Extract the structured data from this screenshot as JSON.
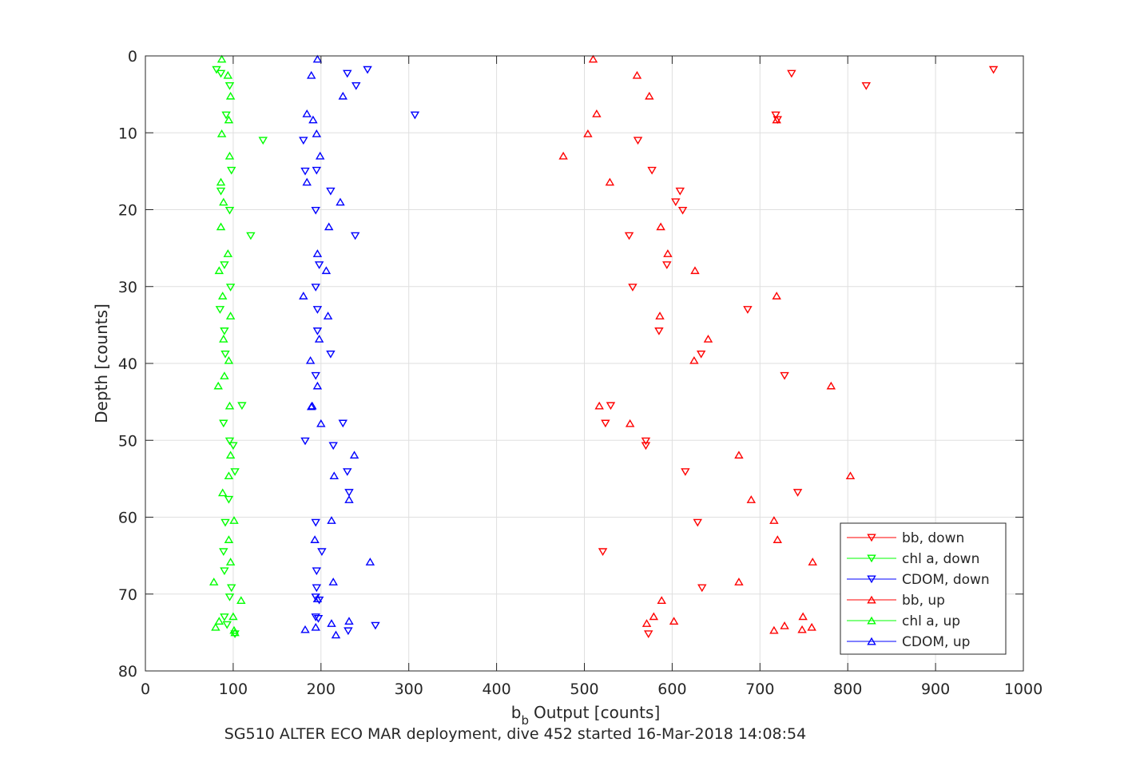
{
  "chart_data": {
    "type": "scatter",
    "title": "",
    "xlabel": "Output [counts]",
    "xlabel_prefix": "b",
    "xlabel_subscript": "b",
    "ylabel": "Depth [counts]",
    "caption": "SG510 ALTER ECO MAR deployment, dive 452 started 16-Mar-2018 14:08:54",
    "xlim": [
      0,
      1000
    ],
    "ylim": [
      0,
      80
    ],
    "y_reversed": true,
    "xticks": [
      0,
      100,
      200,
      300,
      400,
      500,
      600,
      700,
      800,
      900,
      1000
    ],
    "yticks": [
      0,
      10,
      20,
      30,
      40,
      50,
      60,
      70,
      80
    ],
    "grid": true,
    "legend_position": "bottom-right",
    "series": [
      {
        "name": "bb, down",
        "color": "#ff0000",
        "marker": "triangle-down",
        "points": [
          [
            966,
            1.8
          ],
          [
            736,
            2.3
          ],
          [
            821,
            3.9
          ],
          [
            718,
            7.7
          ],
          [
            720,
            8.3
          ],
          [
            561,
            11.0
          ],
          [
            577,
            14.9
          ],
          [
            609,
            17.6
          ],
          [
            604,
            19.0
          ],
          [
            612,
            20.1
          ],
          [
            551,
            23.4
          ],
          [
            594,
            27.2
          ],
          [
            555,
            30.1
          ],
          [
            686,
            33.0
          ],
          [
            585,
            35.8
          ],
          [
            633,
            38.8
          ],
          [
            728,
            41.6
          ],
          [
            530,
            45.5
          ],
          [
            524,
            47.8
          ],
          [
            570,
            50.1
          ],
          [
            570,
            50.7
          ],
          [
            615,
            54.1
          ],
          [
            743,
            56.8
          ],
          [
            629,
            60.7
          ],
          [
            521,
            64.5
          ],
          [
            634,
            69.2
          ],
          [
            573,
            75.2
          ]
        ]
      },
      {
        "name": "chl a, down",
        "color": "#00ff00",
        "marker": "triangle-down",
        "points": [
          [
            81,
            1.8
          ],
          [
            86,
            2.3
          ],
          [
            96,
            3.9
          ],
          [
            92,
            7.7
          ],
          [
            134,
            11.0
          ],
          [
            98,
            14.9
          ],
          [
            86,
            17.6
          ],
          [
            96,
            20.1
          ],
          [
            120,
            23.4
          ],
          [
            90,
            27.2
          ],
          [
            97,
            30.1
          ],
          [
            85,
            33.0
          ],
          [
            90,
            35.8
          ],
          [
            91,
            38.8
          ],
          [
            110,
            45.5
          ],
          [
            89,
            47.8
          ],
          [
            96,
            50.1
          ],
          [
            100,
            50.7
          ],
          [
            102,
            54.1
          ],
          [
            95,
            57.7
          ],
          [
            91,
            60.7
          ],
          [
            89,
            64.5
          ],
          [
            90,
            67.0
          ],
          [
            98,
            69.2
          ],
          [
            96,
            70.4
          ],
          [
            90,
            73.0
          ],
          [
            93,
            74.0
          ],
          [
            102,
            75.2
          ]
        ]
      },
      {
        "name": "CDOM, down",
        "color": "#0000ff",
        "marker": "triangle-down",
        "points": [
          [
            253,
            1.8
          ],
          [
            230,
            2.3
          ],
          [
            240,
            3.9
          ],
          [
            307,
            7.7
          ],
          [
            180,
            11.0
          ],
          [
            195,
            14.9
          ],
          [
            182,
            15.0
          ],
          [
            211,
            17.6
          ],
          [
            194,
            20.1
          ],
          [
            239,
            23.4
          ],
          [
            198,
            27.2
          ],
          [
            194,
            30.1
          ],
          [
            196,
            33.0
          ],
          [
            196,
            35.8
          ],
          [
            211,
            38.8
          ],
          [
            194,
            41.6
          ],
          [
            225,
            47.8
          ],
          [
            182,
            50.1
          ],
          [
            214,
            50.7
          ],
          [
            230,
            54.1
          ],
          [
            232,
            56.8
          ],
          [
            194,
            60.7
          ],
          [
            201,
            64.5
          ],
          [
            195,
            67.0
          ],
          [
            195,
            69.2
          ],
          [
            194,
            70.4
          ],
          [
            198,
            70.8
          ],
          [
            194,
            73.0
          ],
          [
            197,
            73.2
          ],
          [
            262,
            74.1
          ],
          [
            231,
            74.8
          ]
        ]
      },
      {
        "name": "bb, up",
        "color": "#ff0000",
        "marker": "triangle-up",
        "points": [
          [
            510,
            0.4
          ],
          [
            560,
            2.5
          ],
          [
            574,
            5.2
          ],
          [
            514,
            7.5
          ],
          [
            719,
            8.3
          ],
          [
            504,
            10.1
          ],
          [
            476,
            13.0
          ],
          [
            529,
            16.4
          ],
          [
            587,
            22.2
          ],
          [
            595,
            25.7
          ],
          [
            626,
            27.9
          ],
          [
            719,
            31.2
          ],
          [
            586,
            33.8
          ],
          [
            641,
            36.8
          ],
          [
            625,
            39.6
          ],
          [
            781,
            42.9
          ],
          [
            517,
            45.5
          ],
          [
            552,
            47.8
          ],
          [
            676,
            51.9
          ],
          [
            803,
            54.6
          ],
          [
            690,
            57.7
          ],
          [
            716,
            60.4
          ],
          [
            720,
            62.9
          ],
          [
            760,
            65.8
          ],
          [
            676,
            68.4
          ],
          [
            588,
            70.8
          ],
          [
            579,
            72.9
          ],
          [
            749,
            72.9
          ],
          [
            602,
            73.5
          ],
          [
            571,
            73.8
          ],
          [
            728,
            74.1
          ],
          [
            759,
            74.3
          ],
          [
            748,
            74.6
          ],
          [
            716,
            74.7
          ]
        ]
      },
      {
        "name": "chl a, up",
        "color": "#00ff00",
        "marker": "triangle-up",
        "points": [
          [
            87,
            0.4
          ],
          [
            94,
            2.5
          ],
          [
            97,
            5.2
          ],
          [
            95,
            8.3
          ],
          [
            87,
            10.1
          ],
          [
            96,
            13.0
          ],
          [
            86,
            16.4
          ],
          [
            89,
            19.0
          ],
          [
            86,
            22.2
          ],
          [
            94,
            25.7
          ],
          [
            84,
            27.9
          ],
          [
            88,
            31.2
          ],
          [
            97,
            33.8
          ],
          [
            89,
            36.8
          ],
          [
            95,
            39.6
          ],
          [
            90,
            41.6
          ],
          [
            83,
            42.9
          ],
          [
            96,
            45.5
          ],
          [
            97,
            51.9
          ],
          [
            95,
            54.6
          ],
          [
            88,
            56.8
          ],
          [
            101,
            60.4
          ],
          [
            95,
            62.9
          ],
          [
            97,
            65.8
          ],
          [
            78,
            68.4
          ],
          [
            109,
            70.8
          ],
          [
            100,
            72.9
          ],
          [
            84,
            73.5
          ],
          [
            80,
            74.3
          ],
          [
            101,
            74.7
          ],
          [
            102,
            75.0
          ]
        ]
      },
      {
        "name": "CDOM, up",
        "color": "#0000ff",
        "marker": "triangle-up",
        "points": [
          [
            196,
            0.4
          ],
          [
            189,
            2.5
          ],
          [
            225,
            5.2
          ],
          [
            184,
            7.5
          ],
          [
            191,
            8.3
          ],
          [
            195,
            10.1
          ],
          [
            199,
            13.0
          ],
          [
            184,
            16.4
          ],
          [
            222,
            19.0
          ],
          [
            209,
            22.2
          ],
          [
            196,
            25.7
          ],
          [
            206,
            27.9
          ],
          [
            180,
            31.2
          ],
          [
            208,
            33.8
          ],
          [
            198,
            36.8
          ],
          [
            188,
            39.6
          ],
          [
            196,
            42.9
          ],
          [
            190,
            45.5
          ],
          [
            189,
            45.6
          ],
          [
            200,
            47.8
          ],
          [
            238,
            51.9
          ],
          [
            215,
            54.6
          ],
          [
            232,
            57.7
          ],
          [
            212,
            60.4
          ],
          [
            193,
            62.9
          ],
          [
            256,
            65.8
          ],
          [
            214,
            68.4
          ],
          [
            196,
            70.6
          ],
          [
            212,
            73.8
          ],
          [
            232,
            73.5
          ],
          [
            194,
            74.3
          ],
          [
            182,
            74.6
          ],
          [
            217,
            75.3
          ]
        ]
      }
    ]
  }
}
